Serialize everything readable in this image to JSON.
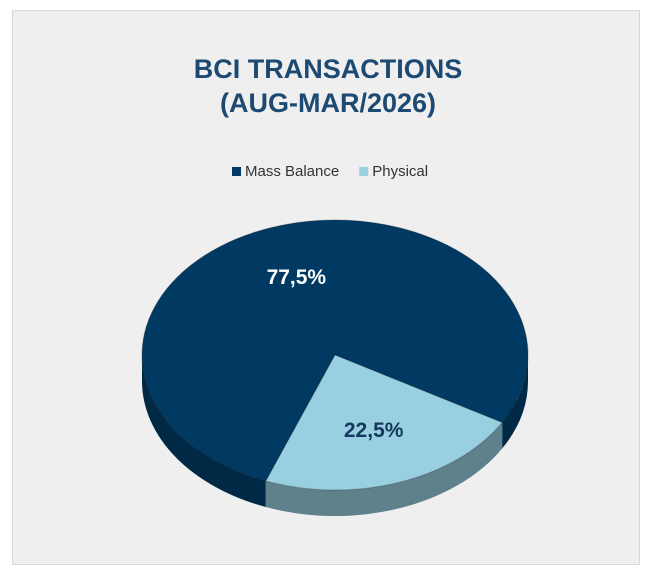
{
  "chart_data": {
    "type": "pie",
    "title": "BCI TRANSACTIONS (AUG-MAR/2026)",
    "categories": [
      "Mass Balance",
      "Physical"
    ],
    "values": [
      77.5,
      22.5
    ],
    "value_labels": [
      "77,5%",
      "22,5%"
    ],
    "colors": [
      "#003a63",
      "#98d0e2"
    ],
    "legend": "top"
  }
}
